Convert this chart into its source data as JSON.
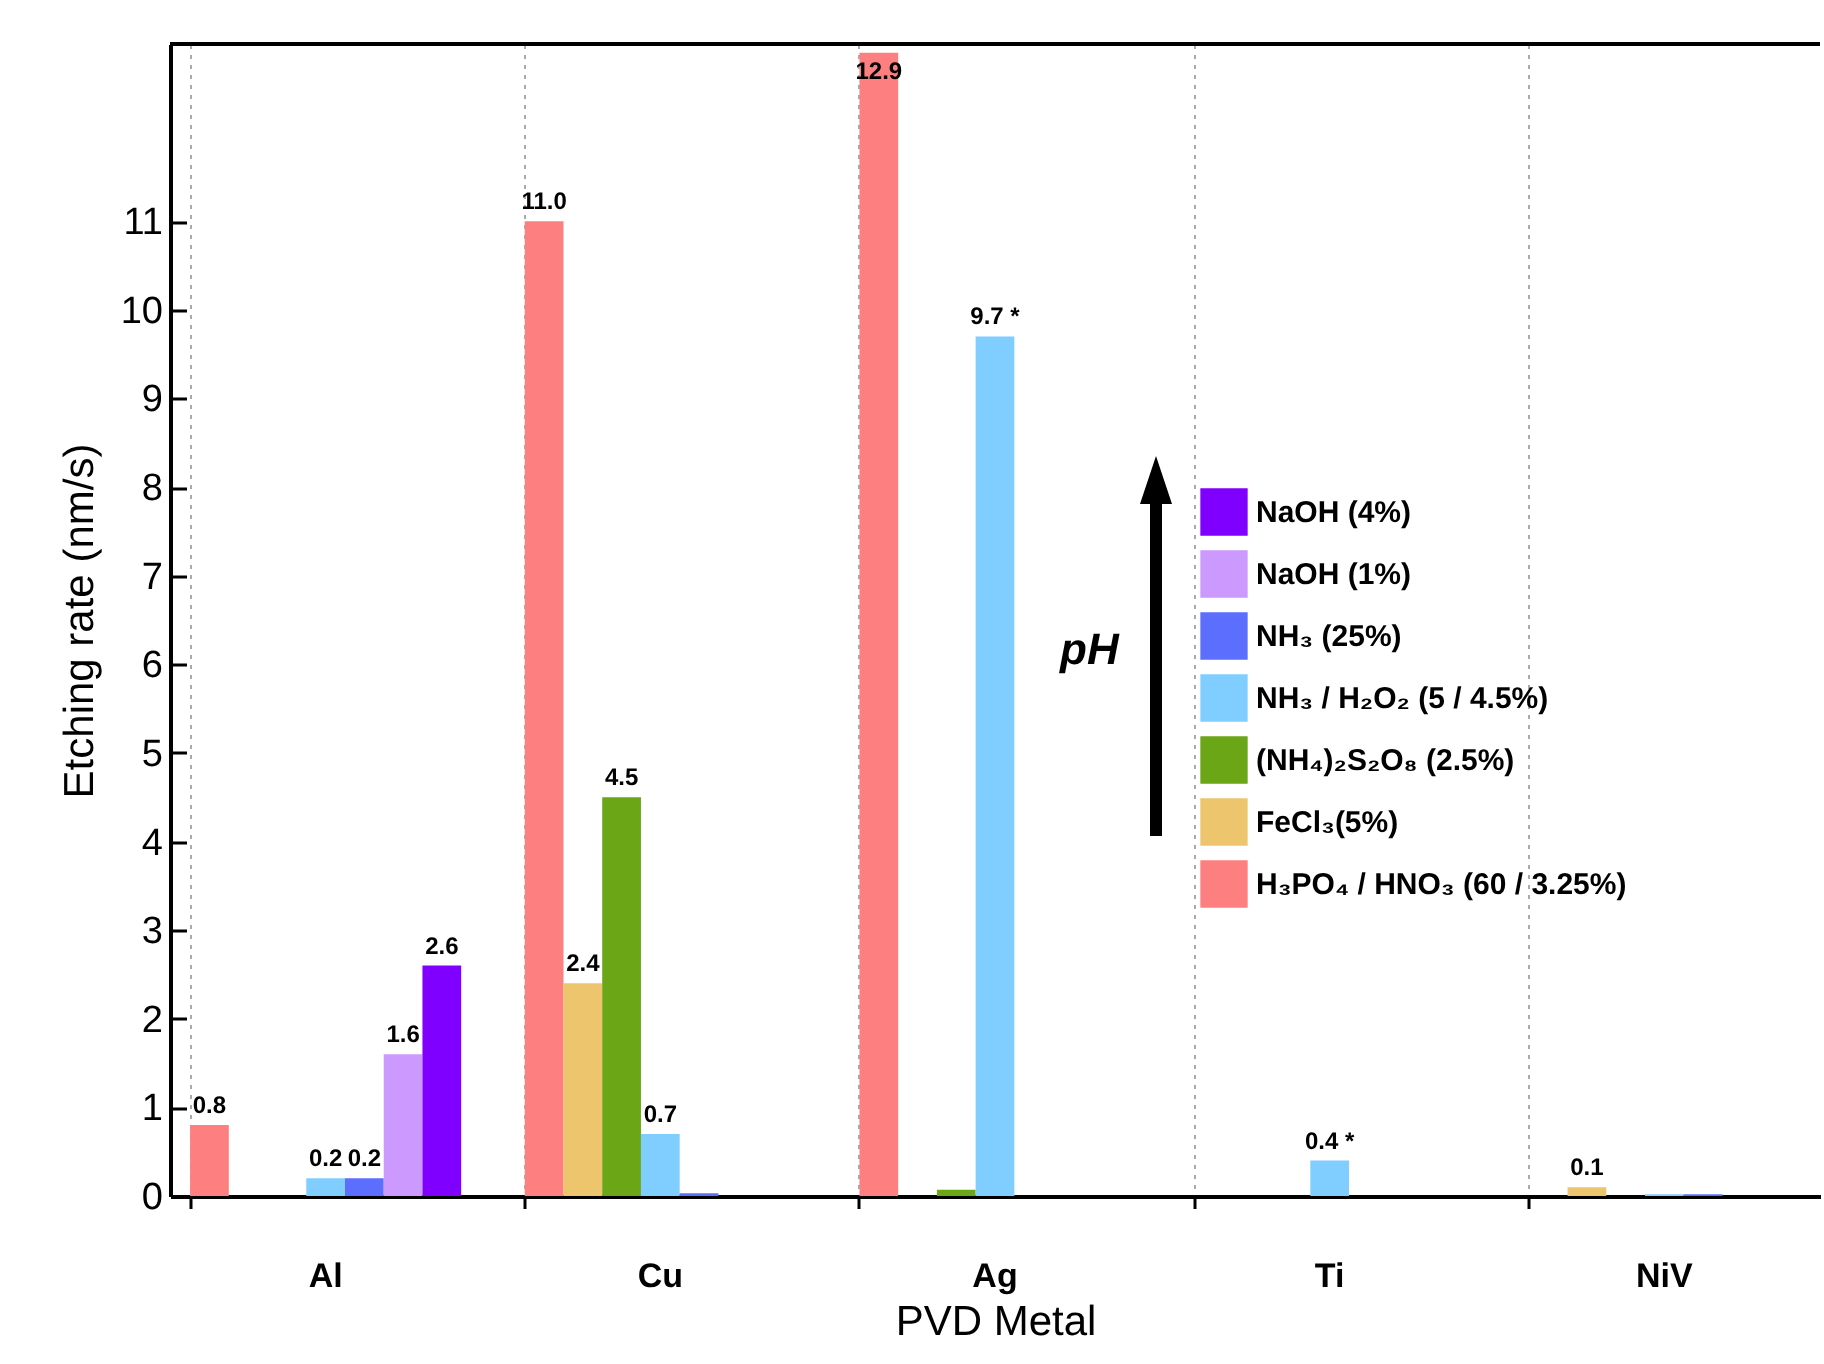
{
  "chart_data": {
    "type": "bar",
    "xlabel": "PVD Metal",
    "ylabel": "Etching rate (nm/s)",
    "categories": [
      "Al",
      "Cu",
      "Ag",
      "Ti",
      "NiV"
    ],
    "series": [
      {
        "name": "H₃PO₄ / HNO₃ (60 / 3.25%)",
        "color": "#fe7f7f",
        "values": [
          0.8,
          11.0,
          12.9,
          0,
          0
        ],
        "value_labels": [
          "0.8",
          "11.0",
          "12.9",
          null,
          null
        ]
      },
      {
        "name": "FeCl₃(5%)",
        "color": "#ecc56c",
        "values": [
          0,
          2.4,
          0,
          0,
          0.1
        ],
        "value_labels": [
          null,
          "2.4",
          null,
          null,
          "0.1"
        ]
      },
      {
        "name": "(NH₄)₂S₂O₈ (2.5%)",
        "color": "#6aa616",
        "values": [
          0,
          4.5,
          0.07,
          0,
          0
        ],
        "value_labels": [
          null,
          "4.5",
          null,
          null,
          null
        ]
      },
      {
        "name": "NH₃ / H₂O₂ (5 / 4.5%)",
        "color": "#80ceff",
        "values": [
          0.2,
          0.7,
          9.7,
          0.4,
          0.02
        ],
        "value_labels": [
          "0.2",
          "0.7",
          "9.7 *",
          "0.4 *",
          null
        ]
      },
      {
        "name": "NH₃ (25%)",
        "color": "#5b6efe",
        "values": [
          0.2,
          0.03,
          0,
          0,
          0.02
        ],
        "value_labels": [
          "0.2",
          null,
          null,
          null,
          null
        ]
      },
      {
        "name": "NaOH (1%)",
        "color": "#cc99fe",
        "values": [
          1.6,
          0,
          0,
          0,
          0
        ],
        "value_labels": [
          "1.6",
          null,
          null,
          null,
          null
        ]
      },
      {
        "name": "NaOH (4%)",
        "color": "#8000ff",
        "values": [
          2.6,
          0,
          0,
          0,
          0
        ],
        "value_labels": [
          "2.6",
          null,
          null,
          null,
          null
        ]
      }
    ],
    "ylim": [
      0,
      13
    ],
    "yticks": [
      0,
      1,
      2,
      3,
      4,
      5,
      6,
      7,
      8,
      9,
      10,
      11
    ],
    "grid": "x",
    "legend": "right",
    "annotations": [
      "pH"
    ]
  }
}
